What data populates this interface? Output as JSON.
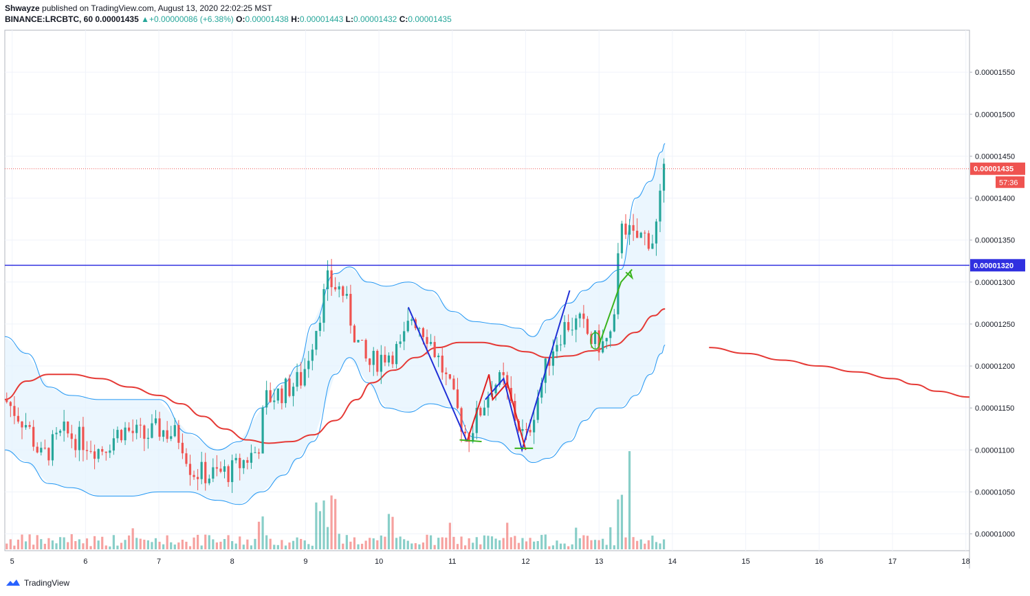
{
  "header": {
    "author": "Shwayze",
    "published_text": "published on TradingView.com, August 13, 2020 22:02:25 MST",
    "symbol": "BINANCE:LRCBTC, 60",
    "last": "0.00001435",
    "change": "+0.00000086 (+6.38%)",
    "o_label": "O:",
    "o_value": "0.00001438",
    "h_label": "H:",
    "h_value": "0.00001443",
    "l_label": "L:",
    "l_value": "0.00001432",
    "c_label": "C:",
    "c_value": "0.00001435"
  },
  "footer": {
    "brand": "TradingView"
  },
  "colors": {
    "up": "#26a69a",
    "down": "#ef5350",
    "band": "#2196f3",
    "band_fill": "#e3f2fd",
    "ma": "#e53935",
    "hline": "#3030e0",
    "pattern_blue": "#1f2fd6",
    "pattern_red": "#e02020",
    "pattern_green": "#39b31b"
  },
  "chart_data": {
    "type": "candlestick",
    "x_axis": {
      "ticks": [
        "5",
        "6",
        "7",
        "8",
        "9",
        "10",
        "11",
        "12",
        "13",
        "14",
        "15",
        "16",
        "17",
        "18"
      ],
      "range_days": [
        4.9,
        18.05
      ]
    },
    "y_axis": {
      "ticks": [
        "0.00001000",
        "0.00001050",
        "0.00001100",
        "0.00001150",
        "0.00001200",
        "0.00001250",
        "0.00001300",
        "0.00001350",
        "0.00001400",
        "0.00001450",
        "0.00001500",
        "0.00001550"
      ],
      "range": [
        9.8e-06,
        1.6e-05
      ]
    },
    "last_price": {
      "value": 1.435e-05,
      "label": "0.00001435",
      "countdown": "57:36"
    },
    "horizontal_line": {
      "value": 1.32e-05,
      "label": "0.00001320"
    },
    "candles_anchor": [
      [
        4.9,
        1.16e-05
      ],
      [
        5.2,
        1.13e-05
      ],
      [
        5.4,
        1.09e-05
      ],
      [
        5.7,
        1.12e-05
      ],
      [
        6.0,
        1.11e-05
      ],
      [
        6.2,
        1.1e-05
      ],
      [
        6.5,
        1.125e-05
      ],
      [
        6.8,
        1.115e-05
      ],
      [
        7.0,
        1.125e-05
      ],
      [
        7.3,
        1.115e-05
      ],
      [
        7.45,
        1.075e-05
      ],
      [
        7.7,
        1.07e-05
      ],
      [
        8.0,
        1.075e-05
      ],
      [
        8.2,
        1.09e-05
      ],
      [
        8.35,
        1.1e-05
      ],
      [
        8.45,
        1.16e-05
      ],
      [
        8.7,
        1.17e-05
      ],
      [
        8.95,
        1.185e-05
      ],
      [
        9.15,
        1.25e-05
      ],
      [
        9.3,
        1.3e-05
      ],
      [
        9.5,
        1.29e-05
      ],
      [
        9.7,
        1.23e-05
      ],
      [
        9.85,
        1.2e-05
      ],
      [
        10.1,
        1.215e-05
      ],
      [
        10.3,
        1.22e-05
      ],
      [
        10.45,
        1.26e-05
      ],
      [
        10.65,
        1.24e-05
      ],
      [
        10.85,
        1.2e-05
      ],
      [
        11.05,
        1.15e-05
      ],
      [
        11.2,
        1.115e-05
      ],
      [
        11.4,
        1.15e-05
      ],
      [
        11.55,
        1.18e-05
      ],
      [
        11.7,
        1.18e-05
      ],
      [
        11.85,
        1.14e-05
      ],
      [
        12.0,
        1.11e-05
      ],
      [
        12.15,
        1.16e-05
      ],
      [
        12.35,
        1.22e-05
      ],
      [
        12.55,
        1.25e-05
      ],
      [
        12.75,
        1.25e-05
      ],
      [
        12.9,
        1.23e-05
      ],
      [
        13.05,
        1.225e-05
      ],
      [
        13.2,
        1.24e-05
      ],
      [
        13.3,
        1.38e-05
      ],
      [
        13.45,
        1.35e-05
      ],
      [
        13.6,
        1.355e-05
      ],
      [
        13.75,
        1.35e-05
      ],
      [
        13.9,
        1.435e-05
      ]
    ],
    "moving_average": [
      [
        4.9,
        1.16e-05
      ],
      [
        5.2,
        1.182e-05
      ],
      [
        5.5,
        1.19e-05
      ],
      [
        5.8,
        1.19e-05
      ],
      [
        6.2,
        1.185e-05
      ],
      [
        6.6,
        1.175e-05
      ],
      [
        7.0,
        1.165e-05
      ],
      [
        7.3,
        1.155e-05
      ],
      [
        7.6,
        1.14e-05
      ],
      [
        7.9,
        1.125e-05
      ],
      [
        8.2,
        1.112e-05
      ],
      [
        8.5,
        1.108e-05
      ],
      [
        8.8,
        1.11e-05
      ],
      [
        9.1,
        1.118e-05
      ],
      [
        9.4,
        1.135e-05
      ],
      [
        9.7,
        1.16e-05
      ],
      [
        9.9,
        1.18e-05
      ],
      [
        10.2,
        1.195e-05
      ],
      [
        10.5,
        1.21e-05
      ],
      [
        10.8,
        1.222e-05
      ],
      [
        11.1,
        1.228e-05
      ],
      [
        11.4,
        1.228e-05
      ],
      [
        11.7,
        1.224e-05
      ],
      [
        12.0,
        1.217e-05
      ],
      [
        12.3,
        1.21e-05
      ],
      [
        12.6,
        1.212e-05
      ],
      [
        12.9,
        1.218e-05
      ],
      [
        13.2,
        1.225e-05
      ],
      [
        13.5,
        1.24e-05
      ],
      [
        13.75,
        1.26e-05
      ],
      [
        13.9,
        1.268e-05
      ]
    ],
    "ma_projection": [
      [
        14.5,
        1.222e-05
      ],
      [
        15.0,
        1.215e-05
      ],
      [
        15.5,
        1.207e-05
      ],
      [
        16.0,
        1.2e-05
      ],
      [
        16.5,
        1.193e-05
      ],
      [
        17.0,
        1.185e-05
      ],
      [
        17.3,
        1.178e-05
      ],
      [
        17.6,
        1.17e-05
      ],
      [
        18.05,
        1.163e-05
      ]
    ],
    "bollinger_upper": [
      [
        4.9,
        1.235e-05
      ],
      [
        5.2,
        1.215e-05
      ],
      [
        5.5,
        1.175e-05
      ],
      [
        5.8,
        1.165e-05
      ],
      [
        6.2,
        1.16e-05
      ],
      [
        6.6,
        1.16e-05
      ],
      [
        7.0,
        1.16e-05
      ],
      [
        7.4,
        1.12e-05
      ],
      [
        7.8,
        1.1e-05
      ],
      [
        8.1,
        1.11e-05
      ],
      [
        8.4,
        1.15e-05
      ],
      [
        8.7,
        1.18e-05
      ],
      [
        8.9,
        1.2e-05
      ],
      [
        9.1,
        1.25e-05
      ],
      [
        9.4,
        1.31e-05
      ],
      [
        9.6,
        1.318e-05
      ],
      [
        9.85,
        1.3e-05
      ],
      [
        10.1,
        1.295e-05
      ],
      [
        10.4,
        1.3e-05
      ],
      [
        10.7,
        1.29e-05
      ],
      [
        11.0,
        1.265e-05
      ],
      [
        11.3,
        1.253e-05
      ],
      [
        11.6,
        1.25e-05
      ],
      [
        11.9,
        1.245e-05
      ],
      [
        12.1,
        1.235e-05
      ],
      [
        12.3,
        1.255e-05
      ],
      [
        12.6,
        1.275e-05
      ],
      [
        12.8,
        1.29e-05
      ],
      [
        13.0,
        1.3e-05
      ],
      [
        13.3,
        1.315e-05
      ],
      [
        13.5,
        1.4e-05
      ],
      [
        13.7,
        1.42e-05
      ],
      [
        13.85,
        1.455e-05
      ],
      [
        13.9,
        1.465e-05
      ]
    ],
    "bollinger_lower": [
      [
        4.9,
        1.1e-05
      ],
      [
        5.2,
        1.085e-05
      ],
      [
        5.5,
        1.06e-05
      ],
      [
        5.8,
        1.055e-05
      ],
      [
        6.2,
        1.045e-05
      ],
      [
        6.6,
        1.045e-05
      ],
      [
        7.0,
        1.05e-05
      ],
      [
        7.4,
        1.05e-05
      ],
      [
        7.8,
        1.04e-05
      ],
      [
        8.1,
        1.035e-05
      ],
      [
        8.4,
        1.05e-05
      ],
      [
        8.7,
        1.07e-05
      ],
      [
        8.9,
        1.09e-05
      ],
      [
        9.1,
        1.11e-05
      ],
      [
        9.4,
        1.19e-05
      ],
      [
        9.6,
        1.21e-05
      ],
      [
        9.85,
        1.18e-05
      ],
      [
        10.1,
        1.15e-05
      ],
      [
        10.4,
        1.145e-05
      ],
      [
        10.7,
        1.155e-05
      ],
      [
        11.0,
        1.15e-05
      ],
      [
        11.3,
        1.115e-05
      ],
      [
        11.6,
        1.11e-05
      ],
      [
        11.9,
        1.095e-05
      ],
      [
        12.1,
        1.085e-05
      ],
      [
        12.3,
        1.09e-05
      ],
      [
        12.6,
        1.11e-05
      ],
      [
        12.8,
        1.135e-05
      ],
      [
        13.0,
        1.15e-05
      ],
      [
        13.3,
        1.15e-05
      ],
      [
        13.5,
        1.165e-05
      ],
      [
        13.7,
        1.19e-05
      ],
      [
        13.85,
        1.215e-05
      ],
      [
        13.9,
        1.225e-05
      ]
    ],
    "drawings": {
      "blue_zigzag_left": [
        [
          10.4,
          1.27e-05
        ],
        [
          11.2,
          1.11e-05
        ]
      ],
      "red_zigzag": [
        [
          11.2,
          1.11e-05
        ],
        [
          11.5,
          1.19e-05
        ],
        [
          11.55,
          1.16e-05
        ],
        [
          11.75,
          1.18e-05
        ],
        [
          12.0,
          1.1e-05
        ]
      ],
      "blue_zigzag_right": [
        [
          11.45,
          1.16e-05
        ],
        [
          11.7,
          1.185e-05
        ],
        [
          11.95,
          1.1e-05
        ],
        [
          12.6,
          1.29e-05
        ]
      ],
      "green_segments": [
        [
          [
            11.1,
            1.112e-05
          ],
          [
            11.4,
            1.11e-05
          ]
        ],
        [
          [
            11.85,
            1.102e-05
          ],
          [
            12.1,
            1.102e-05
          ]
        ]
      ],
      "green_arrow": [
        [
          13.0,
          1.225e-05
        ],
        [
          13.3,
          1.3e-05
        ],
        [
          13.45,
          1.315e-05
        ]
      ],
      "green_ellipse": [
        12.95,
        1.23e-05
      ]
    }
  }
}
